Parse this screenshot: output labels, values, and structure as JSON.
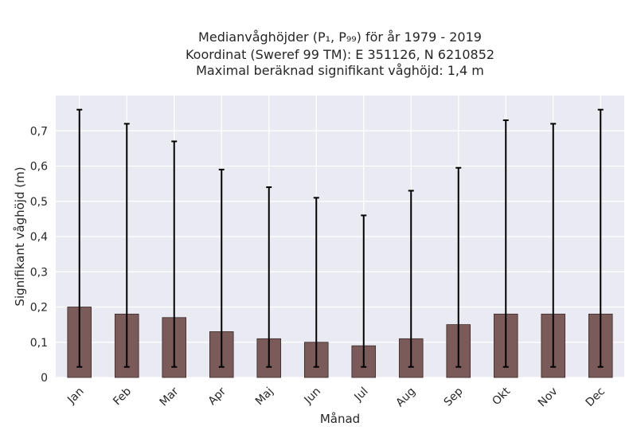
{
  "chart_data": {
    "type": "bar",
    "title_lines": [
      "Medianvåghöjder (P₁, P₉₉) för år 1979 - 2019",
      "Koordinat (Sweref 99 TM): E 351126, N 6210852",
      "Maximal beräknad signifikant våghöjd: 1,4 m"
    ],
    "xlabel": "Månad",
    "ylabel": "Signifikant våghöjd (m)",
    "categories": [
      "Jan",
      "Feb",
      "Mar",
      "Apr",
      "Maj",
      "Jun",
      "Jul",
      "Aug",
      "Sep",
      "Okt",
      "Nov",
      "Dec"
    ],
    "values": [
      0.2,
      0.18,
      0.17,
      0.13,
      0.11,
      0.1,
      0.09,
      0.11,
      0.15,
      0.18,
      0.18,
      0.18
    ],
    "error_low": [
      0.03,
      0.03,
      0.03,
      0.03,
      0.03,
      0.03,
      0.03,
      0.03,
      0.03,
      0.03,
      0.03,
      0.03
    ],
    "error_high": [
      0.76,
      0.72,
      0.67,
      0.59,
      0.54,
      0.51,
      0.46,
      0.53,
      0.595,
      0.73,
      0.72,
      0.76
    ],
    "ylim": [
      0,
      0.8
    ],
    "yticks": [
      0,
      0.1,
      0.2,
      0.3,
      0.4,
      0.5,
      0.6,
      0.7
    ],
    "ytick_labels": [
      "0",
      "0,1",
      "0,2",
      "0,3",
      "0,4",
      "0,5",
      "0,6",
      "0,7"
    ],
    "grid": true,
    "colors": {
      "bar": "#7b5a5a",
      "bar_edge": "#3a2a2a",
      "error_bar": "#000000",
      "plot_background": "#eaeaf2",
      "grid": "#ffffff"
    }
  }
}
